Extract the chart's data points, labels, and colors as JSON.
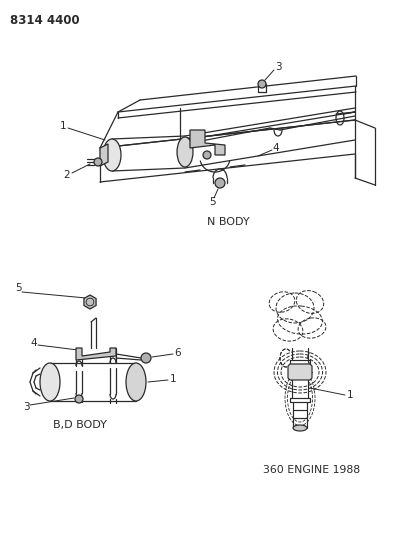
{
  "title": "8314 4400",
  "background_color": "#ffffff",
  "fig_width": 3.99,
  "fig_height": 5.33,
  "dpi": 100,
  "nbody_label": "N BODY",
  "bdbody_label": "B,D BODY",
  "engine_label": "360 ENGINE 1988",
  "line_color": "#2a2a2a",
  "text_color": "#2a2a2a"
}
